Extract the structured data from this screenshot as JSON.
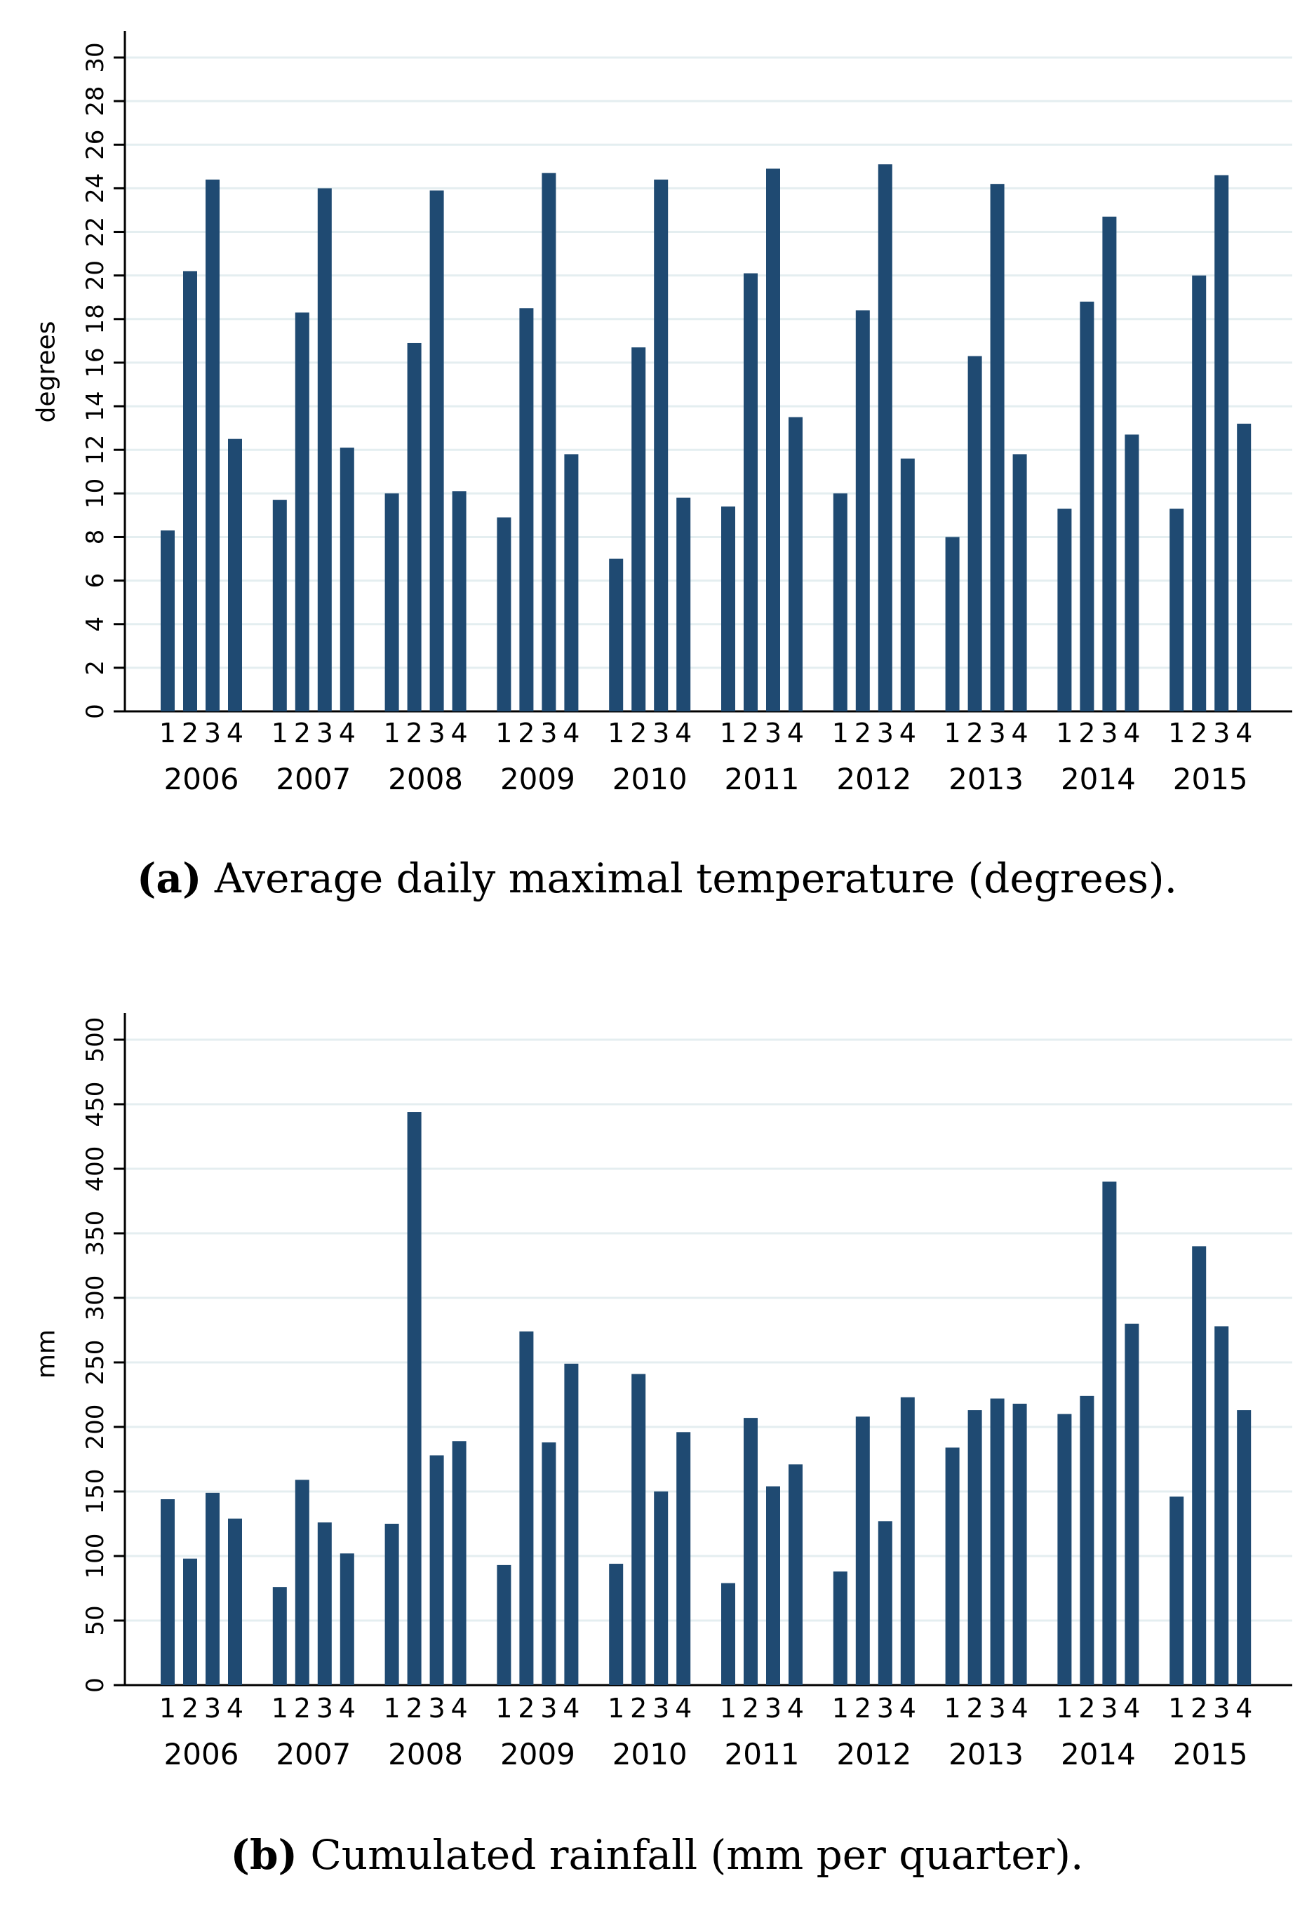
{
  "chart_data": [
    {
      "type": "bar",
      "ylabel": "degrees",
      "xlabel": "",
      "ylim": [
        0,
        30
      ],
      "yticks": [
        0,
        2,
        4,
        6,
        8,
        10,
        12,
        14,
        16,
        18,
        20,
        22,
        24,
        26,
        28,
        30
      ],
      "grid": true,
      "bar_color": "#1f4a72",
      "grid_color": "#e4eef0",
      "quarters": [
        "1",
        "2",
        "3",
        "4"
      ],
      "years": [
        "2006",
        "2007",
        "2008",
        "2009",
        "2010",
        "2011",
        "2012",
        "2013",
        "2014",
        "2015"
      ],
      "values": [
        [
          8.3,
          20.2,
          24.4,
          12.5
        ],
        [
          9.7,
          18.3,
          24.0,
          12.1
        ],
        [
          10.0,
          16.9,
          23.9,
          10.1
        ],
        [
          8.9,
          18.5,
          24.7,
          11.8
        ],
        [
          7.0,
          16.7,
          24.4,
          9.8
        ],
        [
          9.4,
          20.1,
          24.9,
          13.5
        ],
        [
          10.0,
          18.4,
          25.1,
          11.6
        ],
        [
          8.0,
          16.3,
          24.2,
          11.8
        ],
        [
          9.3,
          18.8,
          22.7,
          12.7
        ],
        [
          9.3,
          20.0,
          24.6,
          13.2
        ]
      ],
      "caption_label": "(a)",
      "caption_text": " Average daily maximal temperature (degrees)."
    },
    {
      "type": "bar",
      "ylabel": "mm",
      "xlabel": "",
      "ylim": [
        0,
        500
      ],
      "yticks": [
        0,
        50,
        100,
        150,
        200,
        250,
        300,
        350,
        400,
        450,
        500
      ],
      "grid": true,
      "bar_color": "#1f4a72",
      "grid_color": "#e4eef0",
      "quarters": [
        "1",
        "2",
        "3",
        "4"
      ],
      "years": [
        "2006",
        "2007",
        "2008",
        "2009",
        "2010",
        "2011",
        "2012",
        "2013",
        "2014",
        "2015"
      ],
      "values": [
        [
          144,
          98,
          149,
          129
        ],
        [
          76,
          159,
          126,
          102
        ],
        [
          125,
          444,
          178,
          189
        ],
        [
          93,
          274,
          188,
          249
        ],
        [
          94,
          241,
          150,
          196
        ],
        [
          79,
          207,
          154,
          171
        ],
        [
          88,
          208,
          127,
          223
        ],
        [
          184,
          213,
          222,
          218
        ],
        [
          210,
          224,
          390,
          280
        ],
        [
          146,
          340,
          278,
          213
        ]
      ],
      "caption_label": "(b)",
      "caption_text": " Cumulated rainfall (mm per quarter)."
    }
  ]
}
